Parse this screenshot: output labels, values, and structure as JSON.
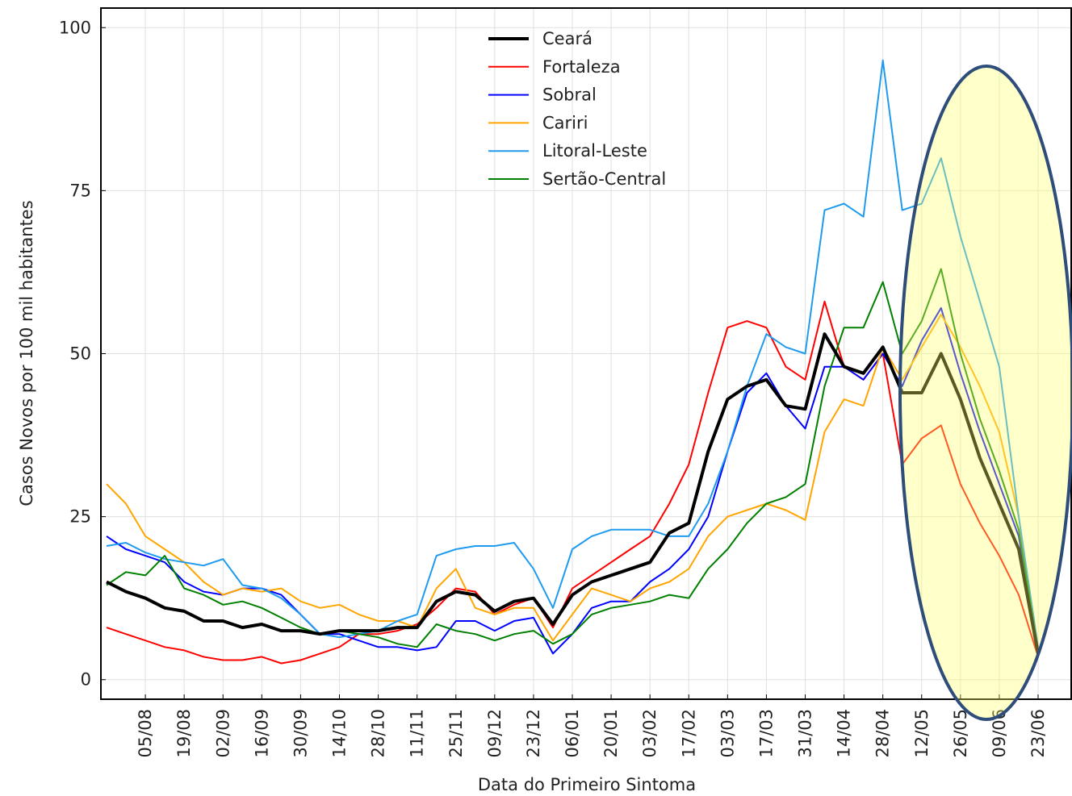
{
  "chart_data": {
    "type": "line",
    "xlabel": "Data do Primeiro Sintoma",
    "ylabel": "Casos Novos por 100 mil habitantes",
    "x": [
      null,
      null,
      "05/08",
      null,
      "19/08",
      null,
      "02/09",
      null,
      "16/09",
      null,
      "30/09",
      null,
      "14/10",
      null,
      "28/10",
      null,
      "11/11",
      null,
      "25/11",
      null,
      "09/12",
      null,
      "23/12",
      null,
      "06/01",
      null,
      "20/01",
      null,
      "03/02",
      null,
      "17/02",
      null,
      "03/03",
      null,
      "17/03",
      null,
      "31/03",
      null,
      "14/04",
      null,
      "28/04",
      null,
      "12/05",
      null,
      "26/05",
      null,
      "09/06",
      null,
      "23/06"
    ],
    "ylim": [
      -3,
      103
    ],
    "yticks": [
      0,
      25,
      50,
      75,
      100
    ],
    "grid": true,
    "legend": "upper center",
    "series": [
      {
        "name": "Ceará",
        "color": "#000000",
        "values": [
          15,
          13.5,
          12.5,
          11,
          10.5,
          9,
          9,
          8,
          8.5,
          7.5,
          7.5,
          7,
          7.5,
          7.5,
          7.5,
          8,
          8,
          12,
          13.5,
          13,
          10.5,
          12,
          12.5,
          8.5,
          13,
          15,
          16,
          17,
          18,
          22.5,
          24,
          35,
          43,
          45,
          46,
          42,
          41.5,
          53,
          48,
          47,
          51,
          44,
          44,
          50,
          43,
          34,
          27,
          20,
          4
        ]
      },
      {
        "name": "Fortaleza",
        "color": "#ff0000",
        "values": [
          8,
          7,
          6,
          5,
          4.5,
          3.5,
          3,
          3,
          3.5,
          2.5,
          3,
          4,
          5,
          7,
          7,
          7.5,
          8.5,
          11,
          14,
          13.5,
          10,
          11.5,
          12.5,
          8,
          14,
          16,
          18,
          20,
          22,
          27,
          33,
          44,
          54,
          55,
          54,
          48,
          46,
          58,
          48,
          46,
          50,
          33,
          37,
          39,
          30,
          24,
          19,
          13,
          3.5
        ]
      },
      {
        "name": "Sobral",
        "color": "#0000ff",
        "values": [
          22,
          20,
          19,
          18,
          15,
          13.5,
          13,
          14,
          14,
          13,
          10,
          7,
          7,
          6,
          5,
          5,
          4.5,
          5,
          9,
          9,
          7.5,
          9,
          9.5,
          4,
          7,
          11,
          12,
          12,
          15,
          17,
          20,
          25,
          35,
          44,
          47,
          42,
          38.5,
          48,
          48,
          46,
          50,
          45,
          52,
          57,
          47,
          38,
          30,
          22,
          4
        ]
      },
      {
        "name": "Cariri",
        "color": "#ffa500",
        "values": [
          30,
          27,
          22,
          20,
          18,
          15,
          13,
          14,
          13.5,
          14,
          12,
          11,
          11.5,
          10,
          9,
          9,
          8,
          14,
          17,
          11,
          10,
          11,
          11,
          6,
          10,
          14,
          13,
          12,
          14,
          15,
          17,
          22,
          25,
          26,
          27,
          26,
          24.5,
          38,
          43,
          42,
          51,
          46,
          51,
          56,
          51,
          45,
          38,
          25,
          4
        ]
      },
      {
        "name": "Litoral-Leste",
        "color": "#1e9bef",
        "values": [
          20.5,
          21,
          19.5,
          18.5,
          18,
          17.5,
          18.5,
          14.5,
          14,
          12.5,
          10,
          7,
          6.5,
          7,
          7.5,
          9,
          10,
          19,
          20,
          20.5,
          20.5,
          21,
          17,
          11,
          20,
          22,
          23,
          23,
          23,
          22,
          22,
          27,
          35,
          45,
          53,
          51,
          50,
          72,
          73,
          71,
          95,
          72,
          73,
          80,
          68,
          58,
          48,
          25,
          5
        ]
      },
      {
        "name": "Sertão-Central",
        "color": "#008000",
        "values": [
          14.5,
          16.5,
          16,
          19,
          14,
          13,
          11.5,
          12,
          11,
          9.5,
          8,
          7,
          7.5,
          7,
          6.5,
          5.5,
          5,
          8.5,
          7.5,
          7,
          6,
          7,
          7.5,
          5.5,
          7,
          10,
          11,
          11.5,
          12,
          13,
          12.5,
          17,
          20,
          24,
          27,
          28,
          30,
          45,
          54,
          54,
          61,
          50,
          55,
          63,
          50,
          40,
          32,
          23,
          4.5
        ]
      }
    ]
  }
}
